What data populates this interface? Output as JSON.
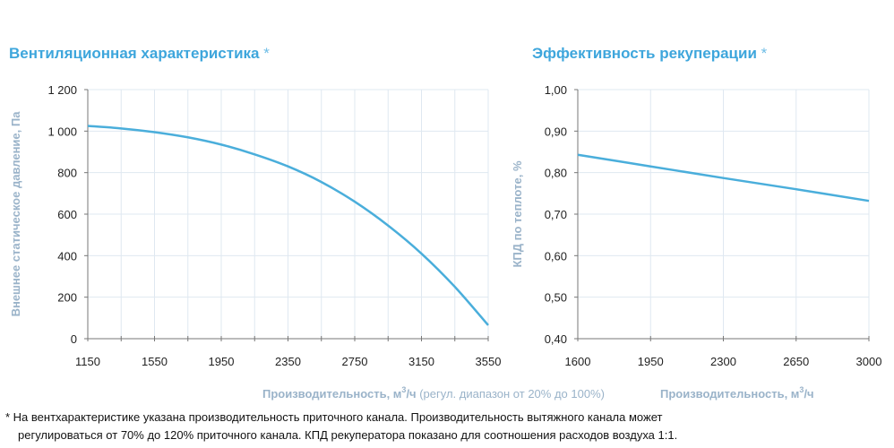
{
  "colors": {
    "title": "#3ea6dc",
    "line": "#4aaedb",
    "axis_label": "#9ab3c9",
    "grid": "#dfe8f1"
  },
  "chart_data": [
    {
      "type": "line",
      "title": "Вентиляционная характеристика",
      "title_mark": "*",
      "xlabel": "Производительность, м",
      "xlabel_unit_sup": "3",
      "xlabel_unit_rest": "/ч",
      "xlabel_note": " (регул. диапазон от 20% до 100%)",
      "ylabel": "Внешнее статическое давление, Па",
      "xlim": [
        1150,
        3550
      ],
      "ylim": [
        0,
        1200
      ],
      "xticks": [
        1150,
        1550,
        1950,
        2350,
        2750,
        3150,
        3550
      ],
      "xtick_labels": [
        "1150",
        "1550",
        "1950",
        "2350",
        "2750",
        "3150",
        "3550"
      ],
      "yticks": [
        0,
        200,
        400,
        600,
        800,
        1000,
        1200
      ],
      "ytick_labels": [
        "0",
        "200",
        "400",
        "600",
        "800",
        "1 000",
        "1 200"
      ],
      "grid": true,
      "x_grid_step": 200,
      "x": [
        1150,
        1350,
        1550,
        1750,
        1950,
        2150,
        2350,
        2550,
        2750,
        2950,
        3150,
        3350,
        3550
      ],
      "y": [
        1025,
        1013,
        995,
        970,
        935,
        888,
        830,
        755,
        660,
        545,
        410,
        250,
        65
      ]
    },
    {
      "type": "line",
      "title": "Эффективность рекуперации",
      "title_mark": "*",
      "xlabel": "Производительность, м",
      "xlabel_unit_sup": "3",
      "xlabel_unit_rest": "/ч",
      "ylabel": "КПД по теплоте, %",
      "xlim": [
        1600,
        3000
      ],
      "ylim": [
        0.4,
        1.0
      ],
      "xticks": [
        1600,
        1950,
        2300,
        2650,
        3000
      ],
      "xtick_labels": [
        "1600",
        "1950",
        "2300",
        "2650",
        "3000"
      ],
      "yticks": [
        0.4,
        0.5,
        0.6,
        0.7,
        0.8,
        0.9,
        1.0
      ],
      "ytick_labels": [
        "0,40",
        "0,50",
        "0,60",
        "0,70",
        "0,80",
        "0,90",
        "1,00"
      ],
      "grid": true,
      "x": [
        1600,
        1950,
        2300,
        2650,
        3000
      ],
      "y": [
        0.843,
        0.815,
        0.787,
        0.76,
        0.732
      ]
    }
  ],
  "footnote": {
    "line1": "* На вентхарактеристике указана производительность приточного канала. Производительность вытяжного канала может",
    "line2": "регулироваться от 70% до 120% приточного канала. КПД рекуператора показано для соотношения расходов воздуха 1:1."
  }
}
